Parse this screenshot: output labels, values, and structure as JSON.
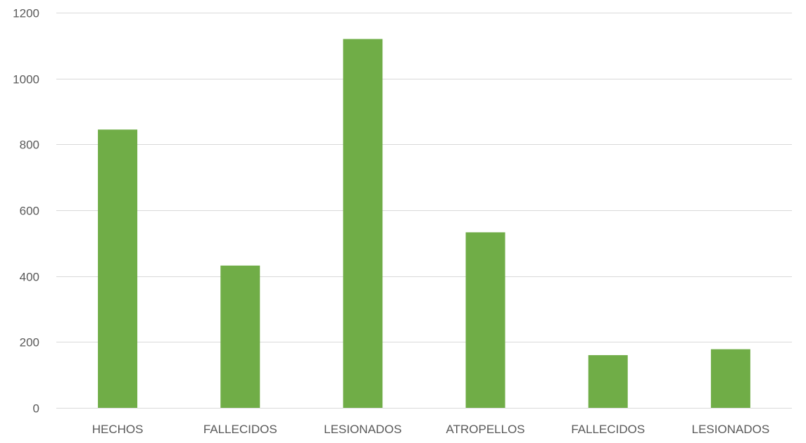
{
  "chart_data": {
    "type": "bar",
    "title": "",
    "xlabel": "",
    "ylabel": "",
    "categories": [
      "HECHOS",
      "FALLECIDOS",
      "LESIONADOS",
      "ATROPELLOS",
      "FALLECIDOS",
      "LESIONADOS"
    ],
    "values": [
      845,
      432,
      1120,
      533,
      160,
      178
    ],
    "ylim": [
      0,
      1200
    ],
    "yticks": [
      0,
      200,
      400,
      600,
      800,
      1000,
      1200
    ],
    "grid": true,
    "legend": "none",
    "bar_color": "#70ad47"
  }
}
